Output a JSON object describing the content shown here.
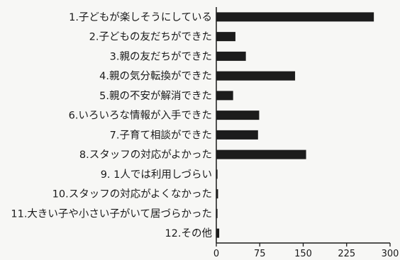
{
  "chart_data": {
    "type": "bar",
    "orientation": "horizontal",
    "categories": [
      "1.子どもが楽しそうにしている",
      "2.子どもの友だちができた",
      "3.親の友だちができた",
      "4.親の気分転換ができた",
      "5.親の不安が解消できた",
      "6.いろいろな情報が入手できた",
      "7.子育て相談ができた",
      "8.スタッフの対応がよかった",
      "9. 1人では利用しづらい",
      "10.スタッフの対応がよくなかった",
      "11.大きい子や小さい子がいて居づらかった",
      "12.その他"
    ],
    "values": [
      272,
      33,
      51,
      136,
      29,
      74,
      72,
      155,
      2,
      3,
      2,
      5
    ],
    "xlim": [
      0,
      300
    ],
    "xticks": [
      "0",
      "75",
      "150",
      "225",
      "300"
    ],
    "title": "",
    "xlabel": "",
    "ylabel": "",
    "grid": false,
    "bar_color": "#1c1c1c"
  }
}
